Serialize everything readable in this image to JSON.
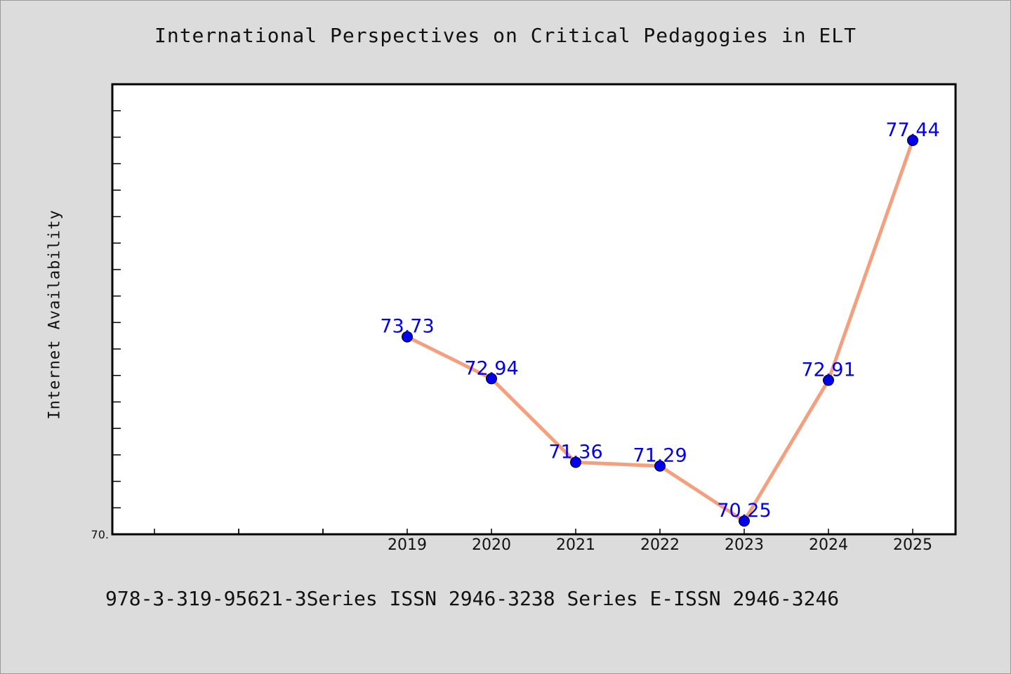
{
  "chart_data": {
    "type": "line",
    "title": "International Perspectives on Critical Pedagogies in ELT",
    "ylabel": "Internet Availability",
    "xlabel": "",
    "x_ticks": [
      "2019",
      "2020",
      "2021",
      "2022",
      "2023",
      "2024",
      "2025"
    ],
    "y_tick_label": "70.",
    "series": [
      {
        "x": [
          2019,
          2020,
          2021,
          2022,
          2023,
          2024,
          2025
        ],
        "values": [
          73.73,
          72.94,
          71.36,
          71.29,
          70.25,
          72.91,
          77.44
        ],
        "labels": [
          "73.73",
          "72.94",
          "71.36",
          "71.29",
          "70.25",
          "72.91",
          "77.44"
        ]
      }
    ],
    "xlim": [
      2016,
      2026
    ],
    "ylim": [
      70,
      78.5
    ],
    "grid": false,
    "line_color": "#f4a07e",
    "marker_color": "#0000ee",
    "label_color": "#0000ee"
  },
  "footer": {
    "text": "978-3-319-95621-3Series ISSN 2946-3238 Series E-ISSN 2946-3246"
  }
}
